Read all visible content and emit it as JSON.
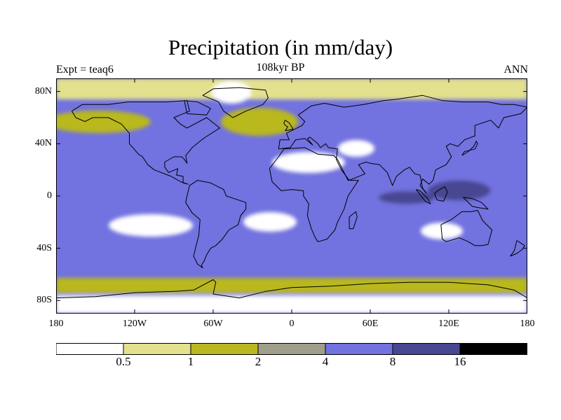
{
  "header": {
    "title": "Precipitation (in mm/day)",
    "subtitle": "108kyr BP",
    "left_label": "Expt = teaq6",
    "right_label": "ANN"
  },
  "map": {
    "projection": "cylindrical-equidistant",
    "lon_range": [
      -180,
      180
    ],
    "lat_range": [
      -90,
      90
    ],
    "lat_ticks": [
      {
        "value": 80,
        "label": "80N"
      },
      {
        "value": 40,
        "label": "40N"
      },
      {
        "value": 0,
        "label": "0"
      },
      {
        "value": -40,
        "label": "40S"
      },
      {
        "value": -80,
        "label": "80S"
      }
    ],
    "lon_ticks": [
      {
        "value": -180,
        "label": "180"
      },
      {
        "value": -120,
        "label": "120W"
      },
      {
        "value": -60,
        "label": "60W"
      },
      {
        "value": 0,
        "label": "0"
      },
      {
        "value": 60,
        "label": "60E"
      },
      {
        "value": 120,
        "label": "120E"
      },
      {
        "value": 180,
        "label": "180"
      }
    ],
    "field_levels": [
      {
        "name": "ocean-background",
        "level": 4
      },
      {
        "name": "southern-ocean-band",
        "level": 2
      },
      {
        "name": "arctic-zone",
        "level": 1
      },
      {
        "name": "north-pacific-storm-track",
        "level": 2
      },
      {
        "name": "north-atlantic-storm-track",
        "level": 2
      },
      {
        "name": "itcz-band",
        "level": 4
      },
      {
        "name": "sahara-desert",
        "level": 0
      },
      {
        "name": "arabia-desert",
        "level": 0
      },
      {
        "name": "se-pacific-dry-zone",
        "level": 0
      },
      {
        "name": "se-atlantic-dry-zone",
        "level": 0
      },
      {
        "name": "australia-interior",
        "level": 0
      },
      {
        "name": "antarctica",
        "level": 0
      },
      {
        "name": "greenland",
        "level": 0
      },
      {
        "name": "west-pacific-warm-pool",
        "level": 5
      },
      {
        "name": "indian-ocean-monsoon",
        "level": 5
      },
      {
        "name": "amazon-wet",
        "level": 4
      },
      {
        "name": "central-africa-wet",
        "level": 4
      }
    ],
    "coastlines": [
      {
        "name": "north-america",
        "points": [
          [
            -168,
            65
          ],
          [
            -160,
            70
          ],
          [
            -140,
            70
          ],
          [
            -125,
            72
          ],
          [
            -95,
            72
          ],
          [
            -80,
            73
          ],
          [
            -78,
            65
          ],
          [
            -90,
            60
          ],
          [
            -85,
            55
          ],
          [
            -80,
            52
          ],
          [
            -65,
            60
          ],
          [
            -55,
            52
          ],
          [
            -66,
            45
          ],
          [
            -70,
            42
          ],
          [
            -76,
            37
          ],
          [
            -81,
            31
          ],
          [
            -80,
            25
          ],
          [
            -82,
            28
          ],
          [
            -84,
            30
          ],
          [
            -90,
            30
          ],
          [
            -97,
            26
          ],
          [
            -97,
            22
          ],
          [
            -94,
            18
          ],
          [
            -87,
            21
          ],
          [
            -88,
            16
          ],
          [
            -83,
            15
          ],
          [
            -83,
            10
          ],
          [
            -79,
            9
          ],
          [
            -85,
            11
          ],
          [
            -92,
            15
          ],
          [
            -105,
            20
          ],
          [
            -110,
            24
          ],
          [
            -114,
            30
          ],
          [
            -117,
            32
          ],
          [
            -124,
            40
          ],
          [
            -124,
            48
          ],
          [
            -130,
            55
          ],
          [
            -140,
            60
          ],
          [
            -152,
            60
          ],
          [
            -158,
            57
          ],
          [
            -165,
            60
          ],
          [
            -168,
            65
          ]
        ]
      },
      {
        "name": "south-america",
        "points": [
          [
            -78,
            8
          ],
          [
            -72,
            12
          ],
          [
            -62,
            10
          ],
          [
            -52,
            5
          ],
          [
            -50,
            0
          ],
          [
            -44,
            -2
          ],
          [
            -35,
            -5
          ],
          [
            -35,
            -10
          ],
          [
            -39,
            -15
          ],
          [
            -41,
            -22
          ],
          [
            -48,
            -26
          ],
          [
            -53,
            -33
          ],
          [
            -58,
            -38
          ],
          [
            -62,
            -40
          ],
          [
            -65,
            -45
          ],
          [
            -67,
            -50
          ],
          [
            -69,
            -53
          ],
          [
            -68,
            -55
          ],
          [
            -72,
            -52
          ],
          [
            -75,
            -46
          ],
          [
            -73,
            -38
          ],
          [
            -71,
            -30
          ],
          [
            -70,
            -18
          ],
          [
            -76,
            -13
          ],
          [
            -81,
            -5
          ],
          [
            -80,
            0
          ],
          [
            -78,
            8
          ]
        ]
      },
      {
        "name": "africa",
        "points": [
          [
            -17,
            21
          ],
          [
            -10,
            30
          ],
          [
            -6,
            36
          ],
          [
            10,
            37
          ],
          [
            20,
            32
          ],
          [
            32,
            31
          ],
          [
            35,
            28
          ],
          [
            43,
            12
          ],
          [
            51,
            12
          ],
          [
            43,
            0
          ],
          [
            40,
            -10
          ],
          [
            35,
            -20
          ],
          [
            33,
            -26
          ],
          [
            27,
            -33
          ],
          [
            20,
            -35
          ],
          [
            18,
            -32
          ],
          [
            15,
            -25
          ],
          [
            12,
            -15
          ],
          [
            13,
            -6
          ],
          [
            9,
            0
          ],
          [
            9,
            4
          ],
          [
            0,
            5
          ],
          [
            -8,
            4
          ],
          [
            -15,
            11
          ],
          [
            -17,
            21
          ]
        ]
      },
      {
        "name": "eurasia",
        "points": [
          [
            -10,
            36
          ],
          [
            -9,
            43
          ],
          [
            -2,
            43
          ],
          [
            -4,
            48
          ],
          [
            2,
            51
          ],
          [
            8,
            54
          ],
          [
            10,
            57
          ],
          [
            5,
            62
          ],
          [
            15,
            69
          ],
          [
            25,
            71
          ],
          [
            40,
            68
          ],
          [
            55,
            70
          ],
          [
            70,
            73
          ],
          [
            80,
            74
          ],
          [
            100,
            77
          ],
          [
            115,
            73
          ],
          [
            130,
            72
          ],
          [
            150,
            72
          ],
          [
            160,
            70
          ],
          [
            170,
            70
          ],
          [
            180,
            68
          ],
          [
            175,
            63
          ],
          [
            162,
            60
          ],
          [
            158,
            52
          ],
          [
            152,
            58
          ],
          [
            140,
            54
          ],
          [
            140,
            46
          ],
          [
            132,
            43
          ],
          [
            127,
            38
          ],
          [
            121,
            40
          ],
          [
            118,
            38
          ],
          [
            122,
            30
          ],
          [
            118,
            24
          ],
          [
            110,
            20
          ],
          [
            108,
            12
          ],
          [
            105,
            9
          ],
          [
            100,
            13
          ],
          [
            98,
            8
          ],
          [
            103,
            2
          ],
          [
            100,
            6
          ],
          [
            98,
            16
          ],
          [
            94,
            17
          ],
          [
            90,
            22
          ],
          [
            86,
            20
          ],
          [
            80,
            15
          ],
          [
            77,
            8
          ],
          [
            73,
            18
          ],
          [
            67,
            24
          ],
          [
            60,
            25
          ],
          [
            57,
            26
          ],
          [
            51,
            24
          ],
          [
            56,
            17
          ],
          [
            44,
            12
          ],
          [
            38,
            20
          ],
          [
            34,
            28
          ],
          [
            35,
            36
          ],
          [
            28,
            37
          ],
          [
            26,
            40
          ],
          [
            22,
            37
          ],
          [
            20,
            40
          ],
          [
            14,
            45
          ],
          [
            12,
            44
          ],
          [
            16,
            39
          ],
          [
            10,
            44
          ],
          [
            3,
            43
          ],
          [
            -1,
            37
          ],
          [
            -10,
            36
          ]
        ]
      },
      {
        "name": "australia",
        "points": [
          [
            114,
            -22
          ],
          [
            122,
            -18
          ],
          [
            130,
            -12
          ],
          [
            137,
            -12
          ],
          [
            142,
            -11
          ],
          [
            146,
            -19
          ],
          [
            153,
            -26
          ],
          [
            150,
            -37
          ],
          [
            145,
            -38
          ],
          [
            140,
            -38
          ],
          [
            135,
            -35
          ],
          [
            128,
            -32
          ],
          [
            118,
            -35
          ],
          [
            115,
            -33
          ],
          [
            114,
            -22
          ]
        ]
      },
      {
        "name": "greenland",
        "points": [
          [
            -45,
            60
          ],
          [
            -52,
            65
          ],
          [
            -56,
            72
          ],
          [
            -68,
            77
          ],
          [
            -60,
            82
          ],
          [
            -40,
            83
          ],
          [
            -20,
            81
          ],
          [
            -18,
            75
          ],
          [
            -22,
            70
          ],
          [
            -35,
            65
          ],
          [
            -45,
            60
          ]
        ]
      },
      {
        "name": "antarctica-coast",
        "points": [
          [
            -180,
            -78
          ],
          [
            -150,
            -77
          ],
          [
            -120,
            -74
          ],
          [
            -90,
            -73
          ],
          [
            -75,
            -72
          ],
          [
            -60,
            -64
          ],
          [
            -58,
            -66
          ],
          [
            -60,
            -75
          ],
          [
            -40,
            -78
          ],
          [
            -20,
            -73
          ],
          [
            0,
            -70
          ],
          [
            30,
            -69
          ],
          [
            60,
            -67
          ],
          [
            90,
            -66
          ],
          [
            120,
            -66
          ],
          [
            150,
            -68
          ],
          [
            170,
            -72
          ],
          [
            180,
            -78
          ]
        ]
      },
      {
        "name": "madagascar",
        "points": [
          [
            44,
            -16
          ],
          [
            49,
            -12
          ],
          [
            50,
            -16
          ],
          [
            47,
            -25
          ],
          [
            44,
            -25
          ],
          [
            44,
            -16
          ]
        ]
      },
      {
        "name": "great-britain",
        "points": [
          [
            -5,
            50
          ],
          [
            1,
            51
          ],
          [
            0,
            53
          ],
          [
            -2,
            56
          ],
          [
            -5,
            58
          ],
          [
            -6,
            56
          ],
          [
            -5,
            54
          ],
          [
            -3,
            53
          ],
          [
            -5,
            50
          ]
        ]
      },
      {
        "name": "japan",
        "points": [
          [
            130,
            31
          ],
          [
            132,
            34
          ],
          [
            136,
            35
          ],
          [
            140,
            36
          ],
          [
            142,
            40
          ],
          [
            141,
            42
          ],
          [
            139,
            38
          ],
          [
            135,
            34
          ],
          [
            130,
            31
          ]
        ]
      },
      {
        "name": "borneo",
        "points": [
          [
            109,
            2
          ],
          [
            113,
            5
          ],
          [
            117,
            7
          ],
          [
            119,
            3
          ],
          [
            116,
            -4
          ],
          [
            111,
            -3
          ],
          [
            109,
            2
          ]
        ]
      },
      {
        "name": "sumatra",
        "points": [
          [
            95,
            5
          ],
          [
            98,
            4
          ],
          [
            104,
            -2
          ],
          [
            106,
            -6
          ],
          [
            102,
            -4
          ],
          [
            95,
            5
          ]
        ]
      },
      {
        "name": "new-guinea",
        "points": [
          [
            131,
            -1
          ],
          [
            138,
            -2
          ],
          [
            145,
            -5
          ],
          [
            150,
            -10
          ],
          [
            143,
            -9
          ],
          [
            138,
            -8
          ],
          [
            131,
            -1
          ]
        ]
      },
      {
        "name": "new-zealand",
        "points": [
          [
            172,
            -34
          ],
          [
            178,
            -38
          ],
          [
            176,
            -41
          ],
          [
            172,
            -44
          ],
          [
            167,
            -46
          ],
          [
            170,
            -42
          ],
          [
            172,
            -34
          ]
        ]
      },
      {
        "name": "baffin-island",
        "points": [
          [
            -80,
            63
          ],
          [
            -65,
            62
          ],
          [
            -62,
            67
          ],
          [
            -72,
            72
          ],
          [
            -82,
            73
          ],
          [
            -80,
            63
          ]
        ]
      }
    ]
  },
  "colorbar": {
    "levels": [
      {
        "label": "0.5",
        "color": "#ffffff"
      },
      {
        "label": "1",
        "color": "#e3e18d"
      },
      {
        "label": "2",
        "color": "#b9b81f"
      },
      {
        "label": "4",
        "color": "#a09f8c"
      },
      {
        "label": "8",
        "color": "#7272e0"
      },
      {
        "label": "16",
        "color": "#474792"
      },
      {
        "label": "",
        "color": "#000000"
      }
    ]
  }
}
